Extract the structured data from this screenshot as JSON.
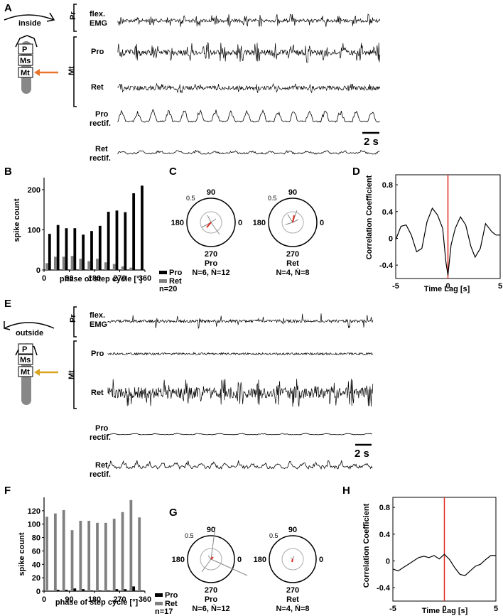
{
  "colors": {
    "pro": "#000000",
    "ret": "#808080",
    "red": "#e0281e",
    "arrow_A": "#e8742a",
    "arrow_E": "#d9a521"
  },
  "icons": [
    "insect-leg-schematic-icon",
    "arrow-icon",
    "scale-bar-icon",
    "polar-plot-icon"
  ],
  "panels": {
    "A": "A",
    "B": "B",
    "C": "C",
    "D": "D",
    "E": "E",
    "F": "F",
    "G": "G",
    "H": "H"
  },
  "schematic_A": {
    "pos_label": "inside",
    "seg_P": "P",
    "seg_Ms": "Ms",
    "seg_Mt": "Mt"
  },
  "schematic_E": {
    "pos_label": "outside",
    "seg_P": "P",
    "seg_Ms": "Ms",
    "seg_Mt": "Mt"
  },
  "traces_A": {
    "group_Pr": "Pr",
    "group_Mt": "Mt",
    "flex_l1": "flex.",
    "flex_l2": "EMG",
    "pro": "Pro",
    "ret": "Ret",
    "pro_rect_l1": "Pro",
    "pro_rect_l2": "rectif.",
    "ret_rect_l1": "Ret",
    "ret_rect_l2": "rectif.",
    "scale": "2 s"
  },
  "traces_E": {
    "group_Pr": "Pr",
    "group_Mt": "Mt",
    "flex_l1": "flex.",
    "flex_l2": "EMG",
    "pro": "Pro",
    "ret": "Ret",
    "pro_rect_l1": "Pro",
    "pro_rect_l2": "rectif.",
    "ret_rect_l1": "Ret",
    "ret_rect_l2": "rectif.",
    "scale": "2 s"
  },
  "polar_C": {
    "pro": {
      "top": "90",
      "left": "180",
      "right": "0",
      "bottom": "270",
      "radius": "0.5",
      "name": "Pro",
      "counts": "N=6, Ṅ=12"
    },
    "ret": {
      "top": "90",
      "left": "180",
      "right": "0",
      "bottom": "270",
      "radius": "0.5",
      "name": "Ret",
      "counts": "N=4, Ṅ=8"
    }
  },
  "polar_G": {
    "pro": {
      "top": "90",
      "left": "180",
      "right": "0",
      "bottom": "270",
      "radius": "0.5",
      "name": "Pro",
      "counts": "N=6, Ṅ=12"
    },
    "ret": {
      "top": "90",
      "left": "180",
      "right": "0",
      "bottom": "270",
      "radius": "0.5",
      "name": "Ret",
      "counts": "N=4, Ṅ=8"
    }
  },
  "chart_data": [
    {
      "id": "B",
      "type": "bar",
      "xlabel": "phase of step cycle [°]",
      "ylabel": "spike count",
      "xticks": [
        "0",
        "90",
        "180",
        "270",
        "360"
      ],
      "yticks": [
        "0",
        "100",
        "200"
      ],
      "ylim": [
        0,
        230
      ],
      "x": [
        15,
        45,
        75,
        105,
        135,
        165,
        195,
        225,
        255,
        285,
        315,
        345
      ],
      "series": [
        {
          "name": "Pro",
          "values": [
            90,
            112,
            104,
            104,
            88,
            97,
            110,
            145,
            148,
            144,
            191,
            210
          ]
        },
        {
          "name": "Ret",
          "values": [
            17,
            33,
            33,
            35,
            28,
            22,
            28,
            19,
            15,
            9,
            6,
            0
          ]
        }
      ],
      "n_label": "n=20",
      "legend": "bottom-right"
    },
    {
      "id": "D",
      "type": "line",
      "xlabel": "Time Lag [s]",
      "ylabel": "Correlation Coefficient",
      "xticks": [
        "-5",
        "0",
        "5"
      ],
      "yticks": [
        "0.8",
        "0.4",
        "0",
        "-0.4"
      ],
      "xlim": [
        -5,
        5
      ],
      "ylim": [
        -0.6,
        0.95
      ],
      "x": [
        -5,
        -4.5,
        -4,
        -3.5,
        -3,
        -2.5,
        -2,
        -1.5,
        -1,
        -0.5,
        -0.2,
        0,
        0.3,
        0.7,
        1.2,
        1.7,
        2.2,
        2.6,
        3.1,
        3.6,
        4.2,
        4.6,
        5
      ],
      "values": [
        -0.02,
        0.18,
        0.2,
        0.05,
        -0.2,
        -0.15,
        0.25,
        0.45,
        0.35,
        0.15,
        -0.35,
        -0.55,
        -0.1,
        0.15,
        0.32,
        0.2,
        -0.12,
        -0.28,
        -0.15,
        0.22,
        0.1,
        0.05,
        0.05
      ]
    },
    {
      "id": "F",
      "type": "bar",
      "xlabel": "phase of step cycle [°]",
      "ylabel": "spike count",
      "xticks": [
        "0",
        "90",
        "180",
        "270",
        "360"
      ],
      "yticks": [
        "0",
        "20",
        "40",
        "60",
        "80",
        "100",
        "120"
      ],
      "ylim": [
        0,
        140
      ],
      "x": [
        15,
        45,
        75,
        105,
        135,
        165,
        195,
        225,
        255,
        285,
        315,
        345
      ],
      "series": [
        {
          "name": "Pro",
          "values": [
            0,
            2,
            2,
            4,
            3,
            1,
            1,
            1,
            3,
            3,
            7,
            1
          ]
        },
        {
          "name": "Ret",
          "values": [
            111,
            116,
            121,
            91,
            105,
            105,
            102,
            102,
            108,
            118,
            136,
            110
          ]
        }
      ],
      "n_label": "n=17",
      "legend": "bottom-right"
    },
    {
      "id": "H",
      "type": "line",
      "xlabel": "Time Lag [s]",
      "ylabel": "Correlation Coefficient",
      "xticks": [
        "-5",
        "0",
        "5"
      ],
      "yticks": [
        "0.8",
        "0.4",
        "0",
        "-0.4"
      ],
      "xlim": [
        -5,
        5
      ],
      "ylim": [
        -0.6,
        0.95
      ],
      "x": [
        -5,
        -4.5,
        -4,
        -3.5,
        -3,
        -2.5,
        -2,
        -1.5,
        -1,
        -0.5,
        0,
        0.5,
        1,
        1.5,
        2,
        2.5,
        3,
        3.5,
        4,
        4.5,
        5
      ],
      "values": [
        -0.12,
        -0.15,
        -0.1,
        -0.05,
        0.0,
        0.05,
        0.07,
        0.05,
        0.08,
        0.03,
        0.1,
        0.02,
        -0.1,
        -0.2,
        -0.22,
        -0.15,
        -0.08,
        -0.05,
        0.02,
        0.08,
        0.08
      ]
    }
  ]
}
